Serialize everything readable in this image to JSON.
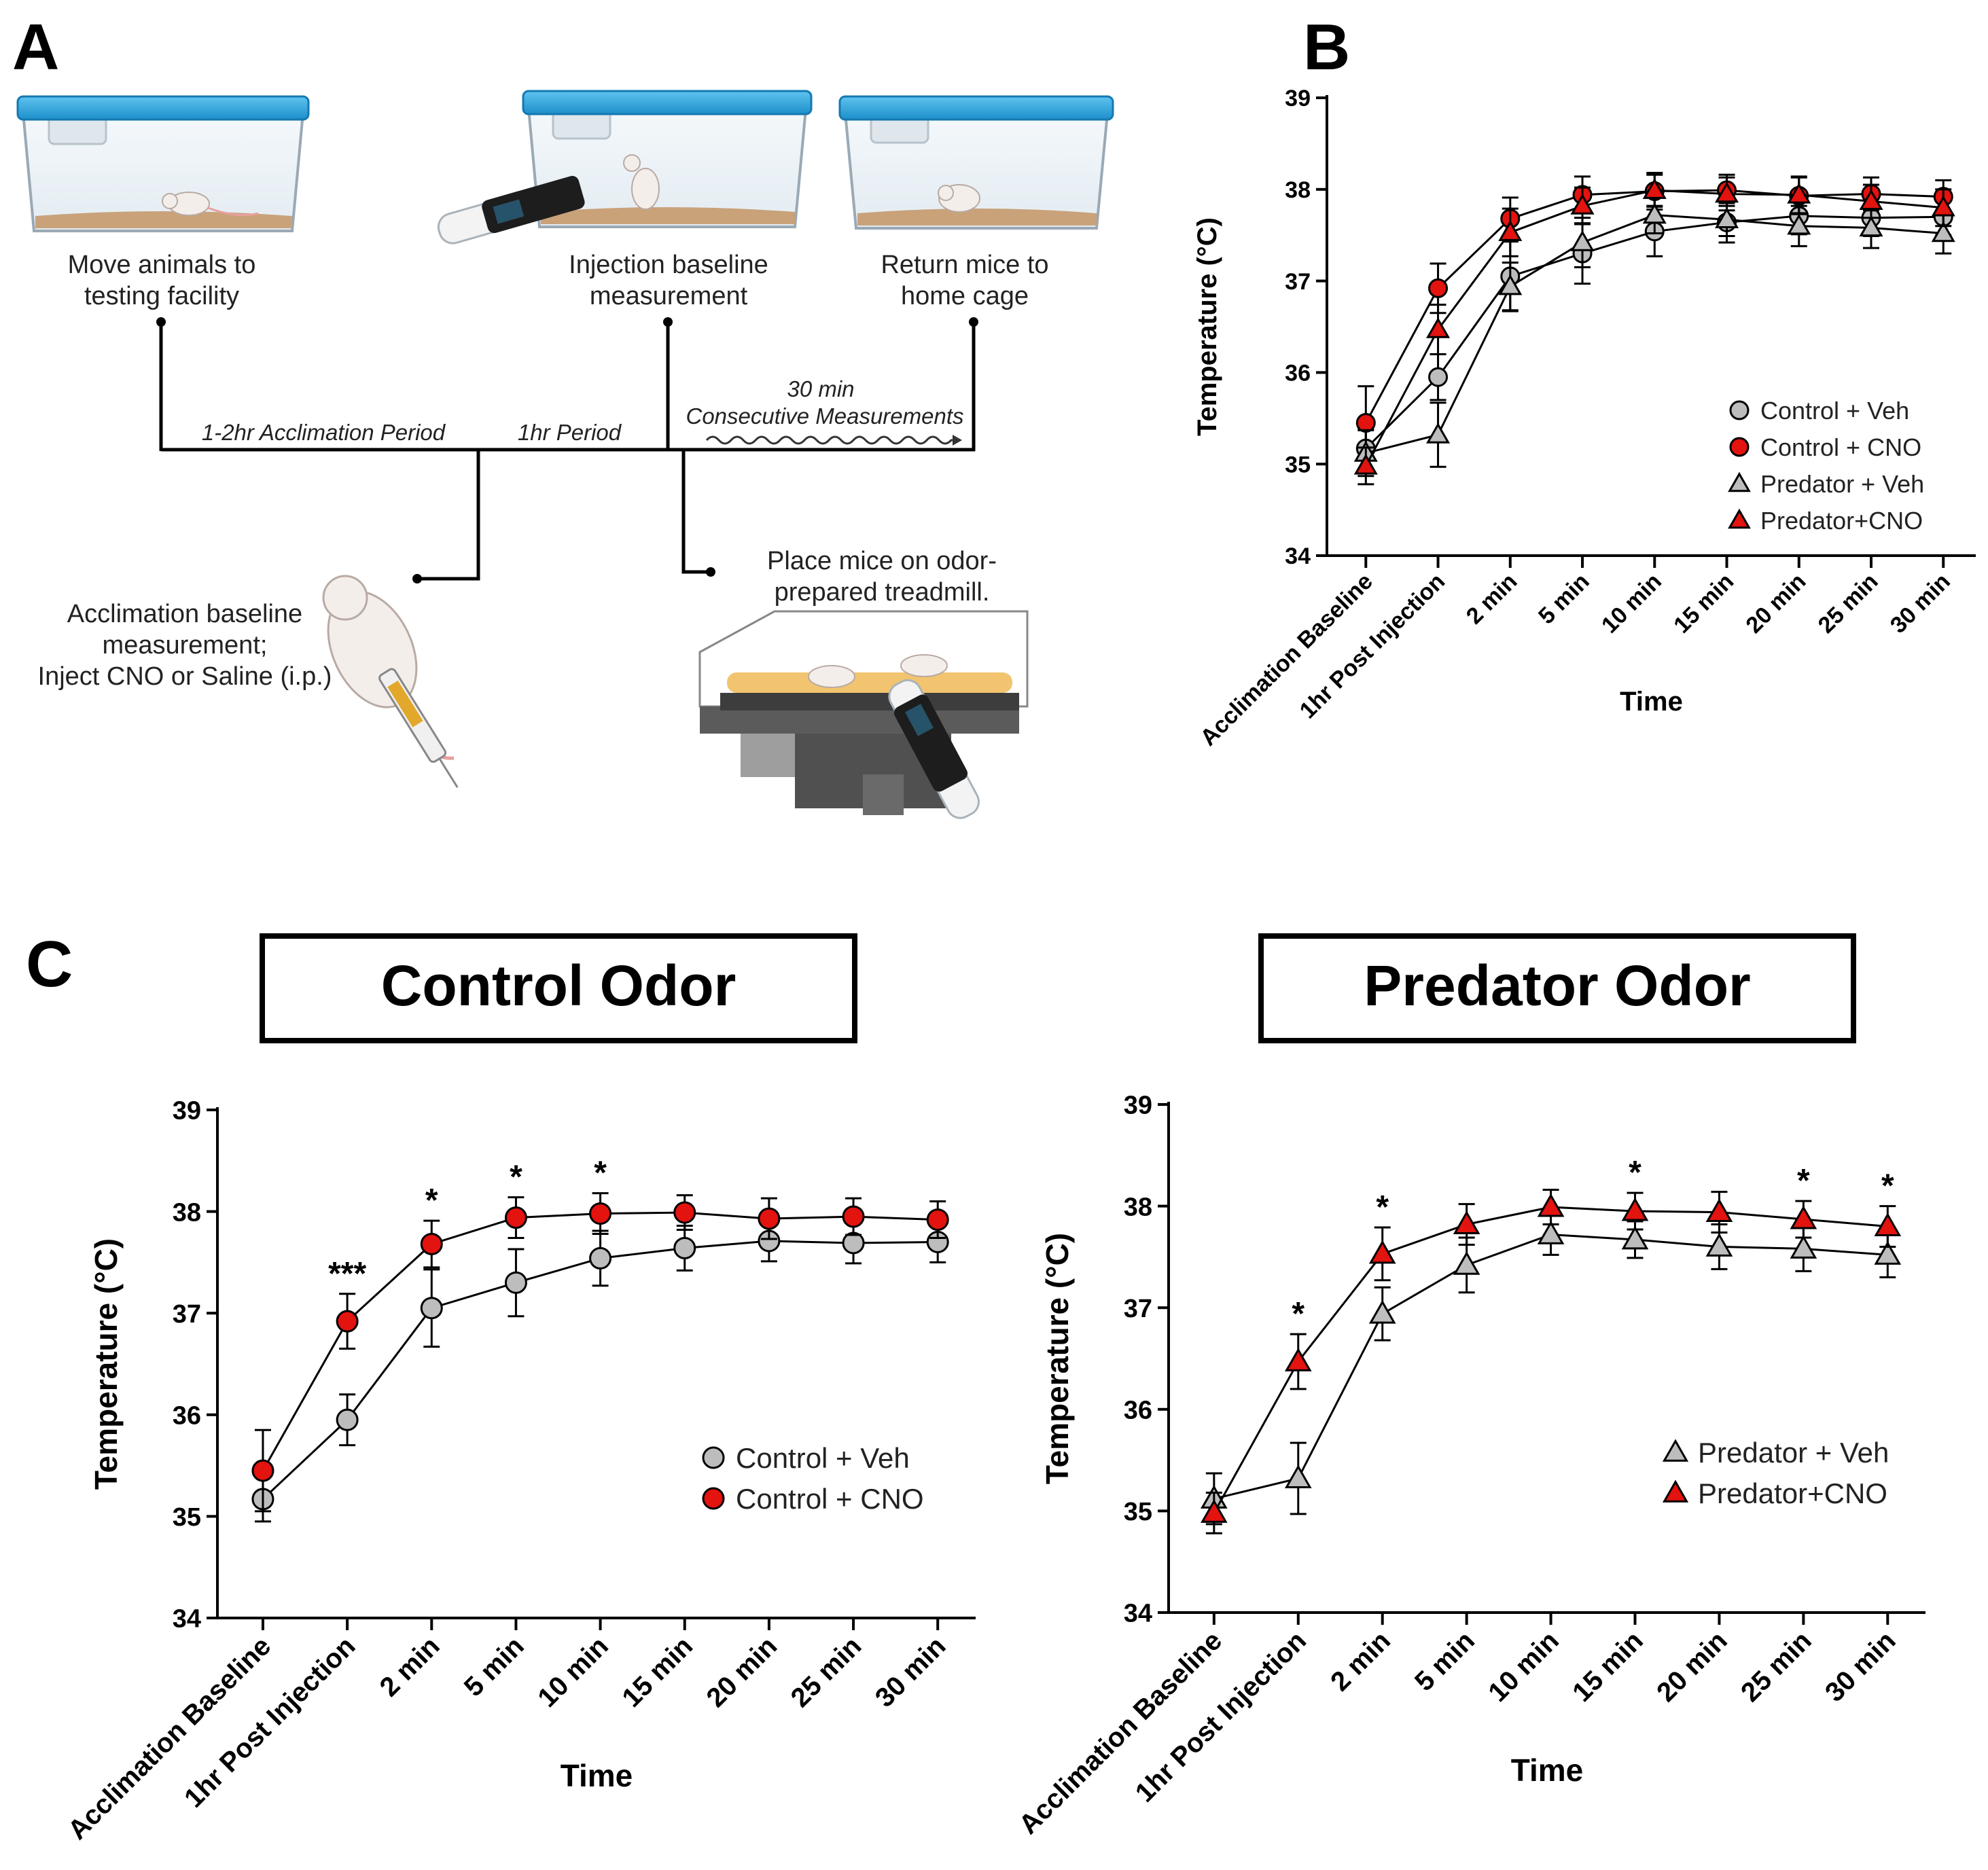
{
  "panels": {
    "a": "A",
    "b": "B",
    "c": "C"
  },
  "timeline": {
    "labels": {
      "move_l1": "Move animals to",
      "move_l2": "testing facility",
      "inj_l1": "Injection baseline",
      "inj_l2": "measurement",
      "ret_l1": "Return mice to",
      "ret_l2": "home cage",
      "accl_period": "1-2hr Acclimation Period",
      "hr_period": "1hr Period",
      "cons_l1": "30 min",
      "cons_l2": "Consecutive Measurements",
      "accbase_l1": "Acclimation baseline",
      "accbase_l2": "measurement;",
      "accbase_l3": "Inject CNO or Saline (i.p.)",
      "place_l1": "Place mice on odor-",
      "place_l2": "prepared treadmill."
    }
  },
  "colors": {
    "veh": "#bdbdbd",
    "cno": "#e3130f",
    "axis": "#000000"
  },
  "chart_data": [
    {
      "id": "B",
      "type": "line",
      "title": "",
      "xlabel": "Time",
      "ylabel": "Temperature (°C)",
      "ylim": [
        34,
        39
      ],
      "yticks": [
        "34",
        "35",
        "36",
        "37",
        "38",
        "39"
      ],
      "categories": [
        "Acclimation Baseline",
        "1hr Post Injection",
        "2 min",
        "5 min",
        "10 min",
        "15 min",
        "20 min",
        "25 min",
        "30 min"
      ],
      "legend_position": "bottom-right",
      "series": [
        {
          "name": "Control + Veh",
          "marker": "circle",
          "color": "#bdbdbd",
          "values": [
            35.17,
            35.95,
            37.05,
            37.3,
            37.54,
            37.64,
            37.71,
            37.69,
            37.7
          ],
          "errors": [
            0.22,
            0.25,
            0.38,
            0.33,
            0.27,
            0.22,
            0.2,
            0.2,
            0.2
          ]
        },
        {
          "name": "Control + CNO",
          "marker": "circle",
          "color": "#e3130f",
          "values": [
            35.45,
            36.92,
            37.68,
            37.94,
            37.98,
            37.99,
            37.93,
            37.95,
            37.92
          ],
          "errors": [
            0.4,
            0.27,
            0.23,
            0.2,
            0.2,
            0.17,
            0.2,
            0.18,
            0.18
          ]
        },
        {
          "name": "Predator + Veh",
          "marker": "triangle",
          "color": "#bdbdbd",
          "values": [
            35.12,
            35.32,
            36.94,
            37.42,
            37.72,
            37.67,
            37.6,
            37.58,
            37.52
          ],
          "errors": [
            0.25,
            0.35,
            0.26,
            0.27,
            0.2,
            0.18,
            0.22,
            0.22,
            0.22
          ]
        },
        {
          "name": "Predator+CNO",
          "marker": "triangle",
          "color": "#e3130f",
          "values": [
            34.98,
            36.47,
            37.53,
            37.82,
            37.99,
            37.95,
            37.94,
            37.87,
            37.8
          ],
          "errors": [
            0.2,
            0.27,
            0.26,
            0.2,
            0.17,
            0.18,
            0.2,
            0.18,
            0.2
          ]
        }
      ]
    },
    {
      "id": "C-control",
      "type": "line",
      "title": "Control Odor",
      "xlabel": "Time",
      "ylabel": "Temperature (°C)",
      "ylim": [
        34,
        39
      ],
      "yticks": [
        "34",
        "35",
        "36",
        "37",
        "38",
        "39"
      ],
      "categories": [
        "Acclimation Baseline",
        "1hr Post Injection",
        "2 min",
        "5 min",
        "10 min",
        "15 min",
        "20 min",
        "25 min",
        "30 min"
      ],
      "legend_position": "bottom-right",
      "annotations": [
        "",
        "***",
        "*",
        "*",
        "*",
        "",
        "",
        "",
        ""
      ],
      "series": [
        {
          "name": "Control + Veh",
          "marker": "circle",
          "color": "#bdbdbd",
          "values": [
            35.17,
            35.95,
            37.05,
            37.3,
            37.54,
            37.64,
            37.71,
            37.69,
            37.7
          ],
          "errors": [
            0.22,
            0.25,
            0.38,
            0.33,
            0.27,
            0.22,
            0.2,
            0.2,
            0.2
          ]
        },
        {
          "name": "Control + CNO",
          "marker": "circle",
          "color": "#e3130f",
          "values": [
            35.45,
            36.92,
            37.68,
            37.94,
            37.98,
            37.99,
            37.93,
            37.95,
            37.92
          ],
          "errors": [
            0.4,
            0.27,
            0.23,
            0.2,
            0.2,
            0.17,
            0.2,
            0.18,
            0.18
          ]
        }
      ]
    },
    {
      "id": "C-predator",
      "type": "line",
      "title": "Predator Odor",
      "xlabel": "Time",
      "ylabel": "Temperature (°C)",
      "ylim": [
        34,
        39
      ],
      "yticks": [
        "34",
        "35",
        "36",
        "37",
        "38",
        "39"
      ],
      "categories": [
        "Acclimation Baseline",
        "1hr Post Injection",
        "2 min",
        "5 min",
        "10 min",
        "15 min",
        "20 min",
        "25 min",
        "30 min"
      ],
      "legend_position": "bottom-right",
      "annotations": [
        "",
        "*",
        "*",
        "",
        "",
        "*",
        "",
        "*",
        "*"
      ],
      "series": [
        {
          "name": "Predator + Veh",
          "marker": "triangle",
          "color": "#bdbdbd",
          "values": [
            35.12,
            35.32,
            36.94,
            37.42,
            37.72,
            37.67,
            37.6,
            37.58,
            37.52
          ],
          "errors": [
            0.25,
            0.35,
            0.26,
            0.27,
            0.2,
            0.18,
            0.22,
            0.22,
            0.22
          ]
        },
        {
          "name": "Predator+CNO",
          "marker": "triangle",
          "color": "#e3130f",
          "values": [
            34.98,
            36.47,
            37.53,
            37.82,
            37.99,
            37.95,
            37.94,
            37.87,
            37.8
          ],
          "errors": [
            0.2,
            0.27,
            0.26,
            0.2,
            0.17,
            0.18,
            0.2,
            0.18,
            0.2
          ]
        }
      ]
    }
  ]
}
